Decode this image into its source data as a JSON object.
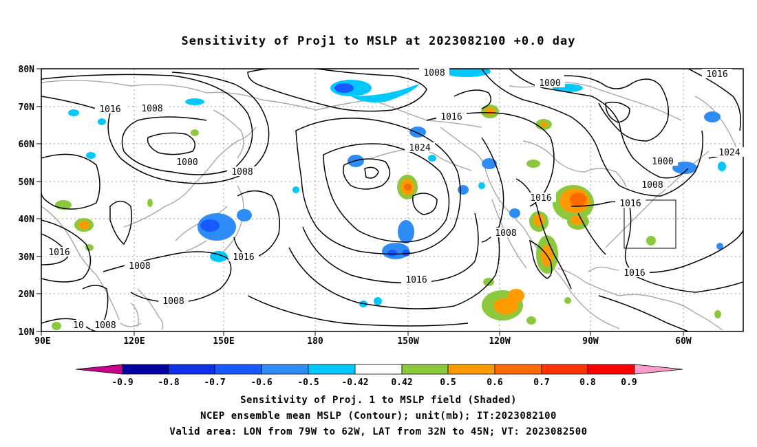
{
  "title": "Sensitivity of Proj1 to MSLP at 2023082100 +0.0 day",
  "lat_labels": [
    "80N",
    "70N",
    "60N",
    "50N",
    "40N",
    "30N",
    "20N",
    "10N"
  ],
  "lon_labels": [
    "90E",
    "120E",
    "150E",
    "180",
    "150W",
    "120W",
    "90W",
    "60W"
  ],
  "contour_labels": [
    "1008",
    "1016",
    "1008",
    "1000",
    "1008",
    "1016",
    "1024",
    "1000",
    "1016",
    "1016",
    "1008",
    "1016",
    "1016",
    "1016",
    "1008",
    "1016",
    "1008",
    "1016",
    "1008",
    "1024",
    "1016",
    "1000",
    "10",
    "1008"
  ],
  "colorbar": {
    "ticks": [
      "-0.9",
      "-0.8",
      "-0.7",
      "-0.6",
      "-0.5",
      "-0.42",
      "0.42",
      "0.5",
      "0.6",
      "0.7",
      "0.8",
      "0.9"
    ],
    "colors": [
      "#c8008c",
      "#0000a0",
      "#1030e8",
      "#1858ff",
      "#2d8cf5",
      "#00c8ff",
      "#ffffff",
      "#8cc83c",
      "#ff9b00",
      "#ff6a00",
      "#ff3200",
      "#ff0000",
      "#ff9ec8"
    ]
  },
  "caption": {
    "line1": "Sensitivity of Proj. 1 to MSLP field (Shaded)",
    "line2": "NCEP ensemble mean MSLP (Contour); unit(mb); IT:2023082100",
    "line3": "Valid area: LON from 79W to 62W, LAT from 32N to 45N; VT: 2023082500"
  }
}
